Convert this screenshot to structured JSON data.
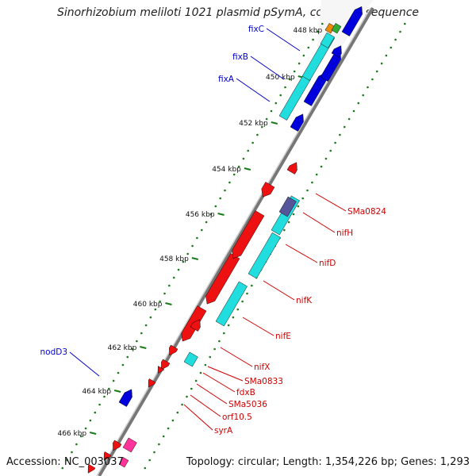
{
  "header": {
    "title": "Sinorhizobium meliloti 1021 plasmid pSymA, complete sequence"
  },
  "footer": {
    "accession": "Accession: NC_003037",
    "summary": "Topology: circular; Length: 1,354,226 bp; Genes: 1,293"
  },
  "colors": {
    "forward_gene": "#0000dd",
    "forward_cds": "#22dddd",
    "reverse_gene": "#ee1111",
    "reverse_cds": "#22dddd",
    "trna": "#ff3399",
    "misc": "#555599",
    "label_forward": "#0000cc",
    "label_reverse": "#cc0000",
    "tick": "#1a7a1a",
    "backbone": "#888888"
  },
  "scale": {
    "unit": "kbp",
    "ticks": [
      {
        "label": "448 kbp"
      },
      {
        "label": "450 kbp"
      },
      {
        "label": "452 kbp"
      },
      {
        "label": "454 kbp"
      },
      {
        "label": "456 kbp"
      },
      {
        "label": "458 kbp"
      },
      {
        "label": "460 kbp"
      },
      {
        "label": "462 kbp"
      },
      {
        "label": "464 kbp"
      },
      {
        "label": "466 kbp"
      }
    ]
  },
  "gene_labels": {
    "forward": [
      "fixC",
      "fixB",
      "fixA",
      "nodD3"
    ],
    "reverse": [
      "SMa0824",
      "nifH",
      "nifD",
      "nifK",
      "nifE",
      "nifX",
      "SMa0833",
      "fdxB",
      "SMa5036",
      "orf10.5",
      "syrA"
    ]
  }
}
